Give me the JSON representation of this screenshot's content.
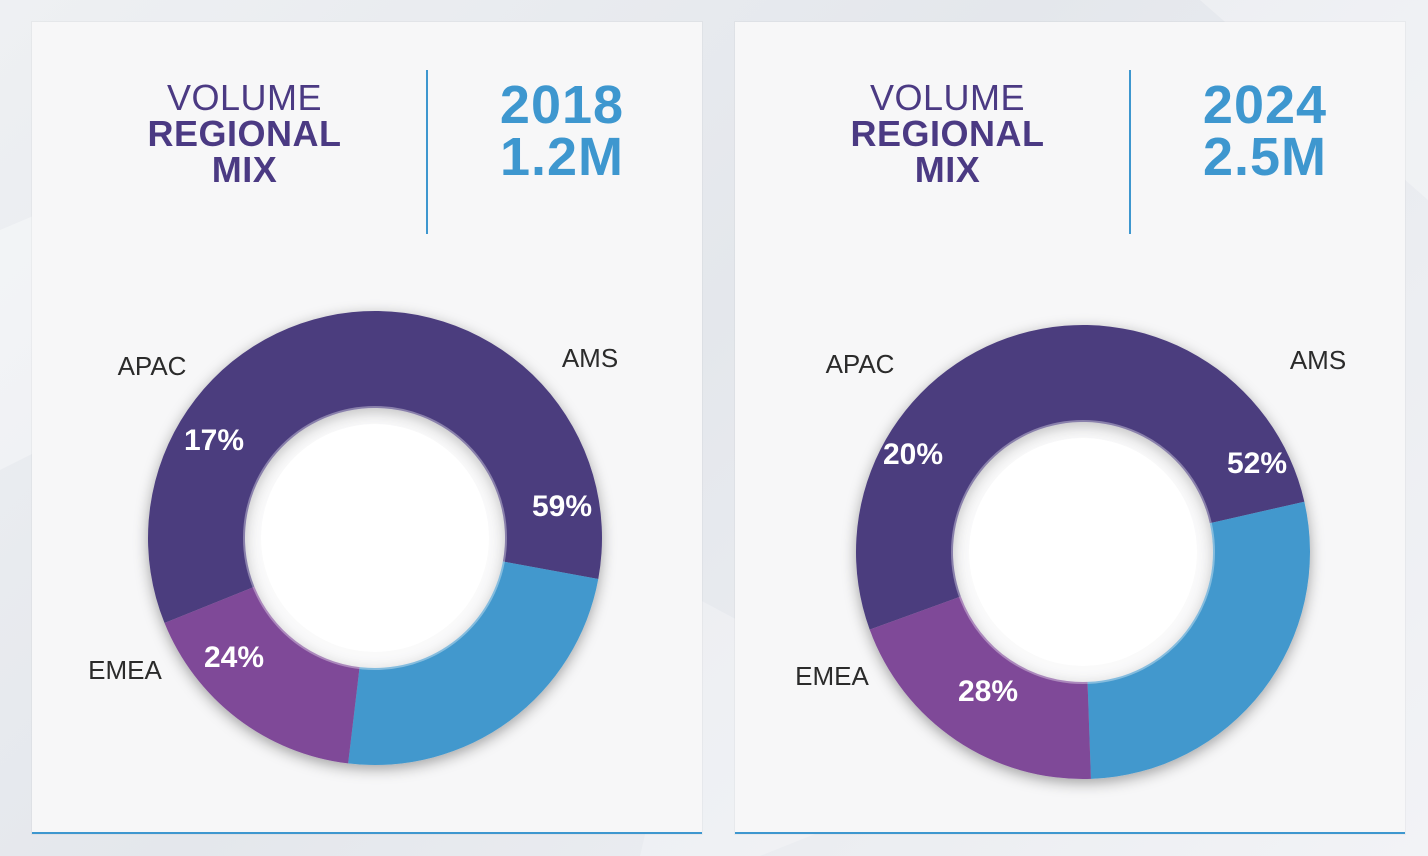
{
  "chart_data": [
    {
      "type": "pie",
      "title": "VOLUME REGIONAL MIX",
      "title_lines": [
        "VOLUME",
        "REGIONAL",
        "MIX"
      ],
      "year": "2018",
      "total": "1.2M",
      "slices": [
        {
          "name": "AMS",
          "value": 59,
          "label": "59%",
          "color": "#4c3e7e"
        },
        {
          "name": "EMEA",
          "value": 24,
          "label": "24%",
          "color": "#4398cd"
        },
        {
          "name": "APAC",
          "value": 17,
          "label": "17%",
          "color": "#7f4a98"
        }
      ]
    },
    {
      "type": "pie",
      "title": "VOLUME REGIONAL MIX",
      "title_lines": [
        "VOLUME",
        "REGIONAL",
        "MIX"
      ],
      "year": "2024",
      "total": "2.5M",
      "slices": [
        {
          "name": "AMS",
          "value": 52,
          "label": "52%",
          "color": "#4c3e7e"
        },
        {
          "name": "EMEA",
          "value": 28,
          "label": "28%",
          "color": "#4398cd"
        },
        {
          "name": "APAC",
          "value": 20,
          "label": "20%",
          "color": "#7f4a98"
        }
      ]
    }
  ],
  "colors": {
    "title": "#4b3a83",
    "accent": "#3e97cf",
    "inner_ring": "rgba(255,255,255,0.35)"
  }
}
